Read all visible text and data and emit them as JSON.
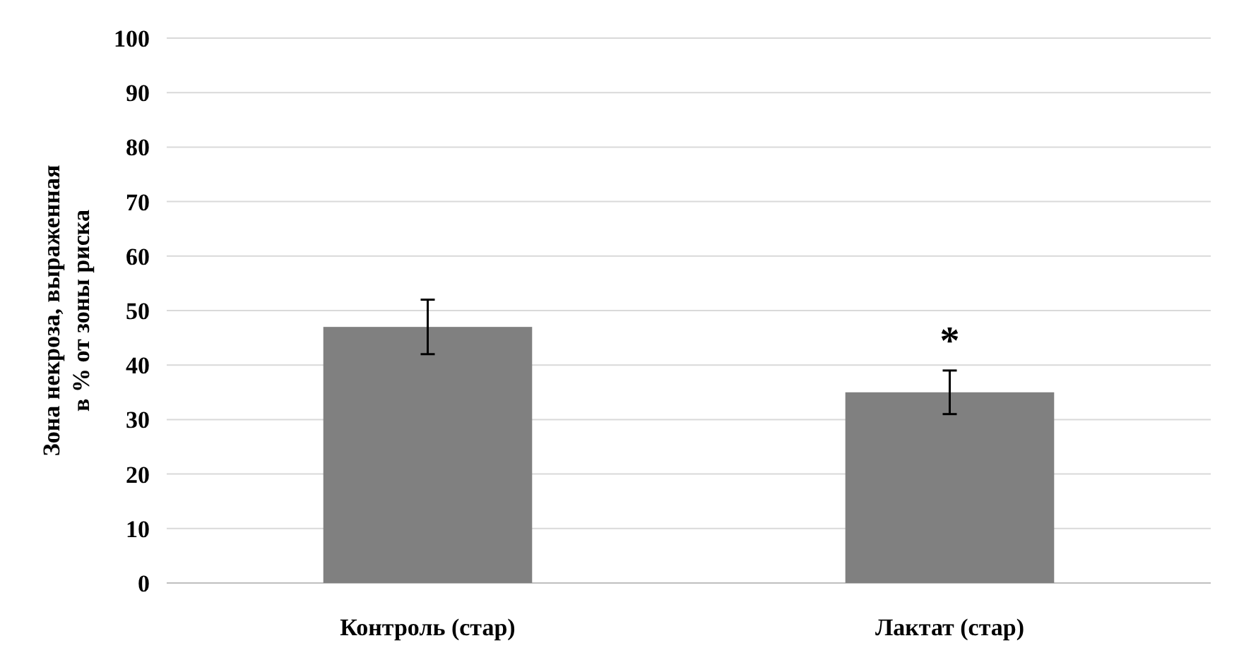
{
  "chart_data": {
    "type": "bar",
    "ylabel": "Зона некроза, выраженная\nв % от зоны риска",
    "categories": [
      "Контроль (стар)",
      "Лактат (стар)"
    ],
    "values": [
      47,
      35
    ],
    "errors": [
      5,
      4
    ],
    "color": "#808080",
    "ylim": [
      0,
      100
    ],
    "yticks": [
      0,
      10,
      20,
      30,
      40,
      50,
      60,
      70,
      80,
      90,
      100
    ],
    "grid": "y",
    "annotations": [
      "*"
    ]
  }
}
